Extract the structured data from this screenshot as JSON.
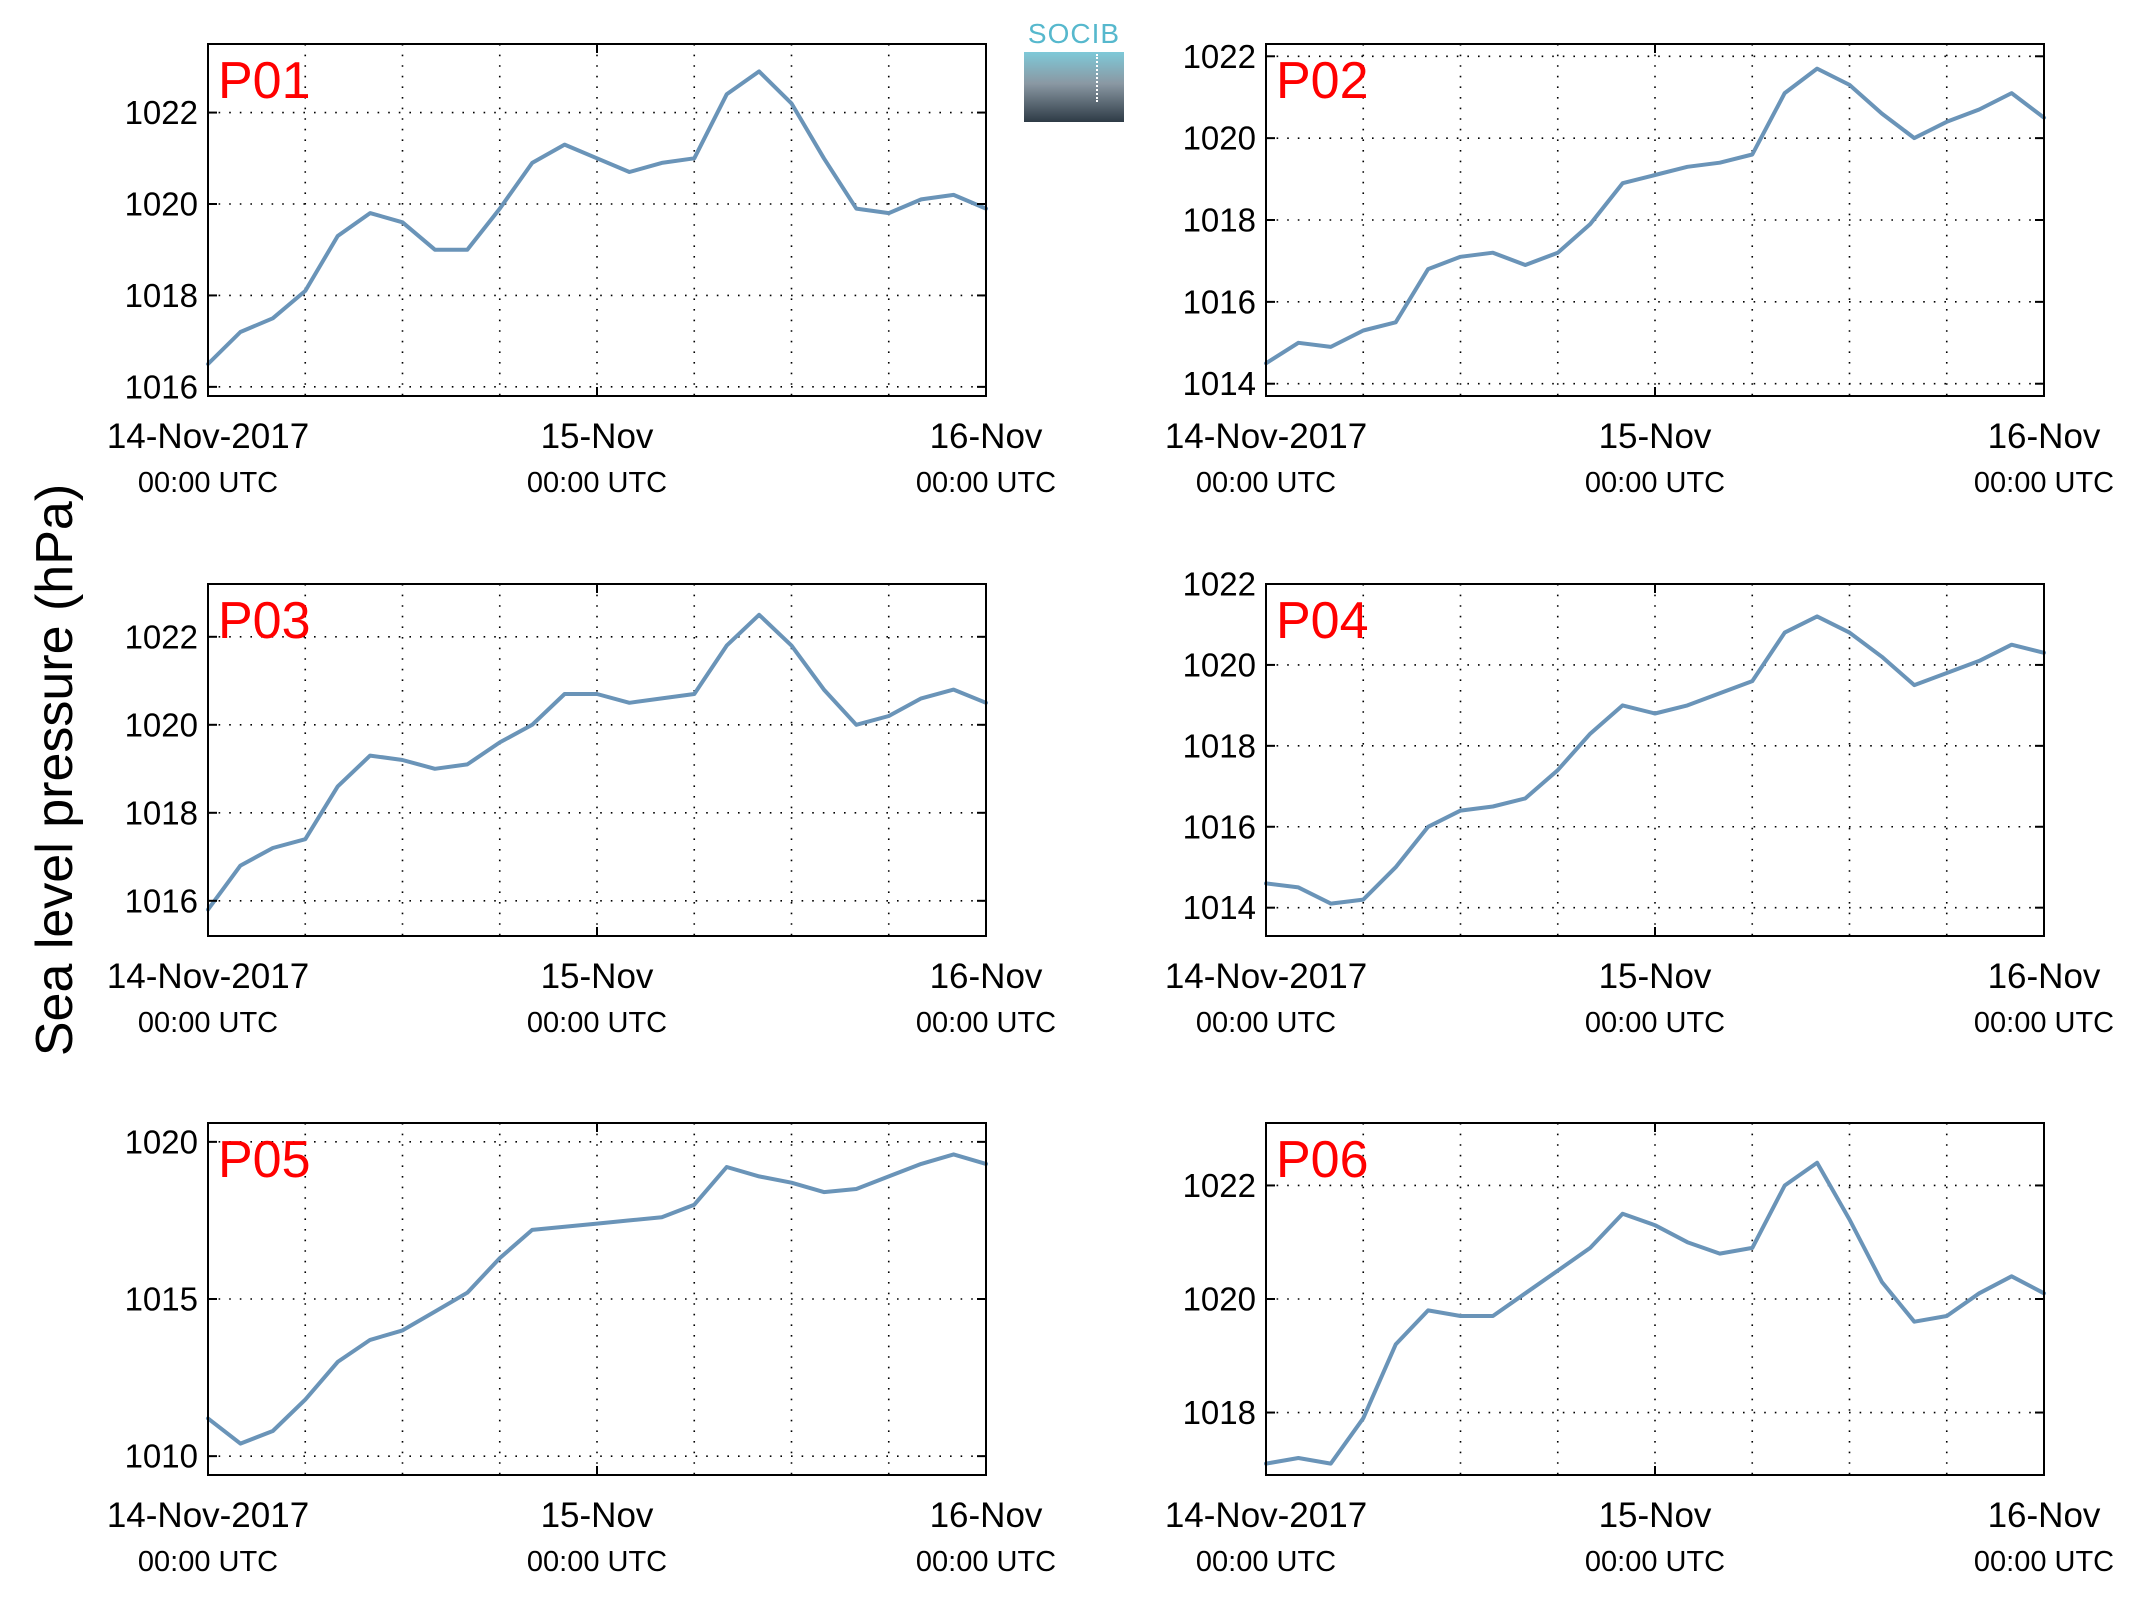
{
  "ylabel": "Sea level pressure (hPa)",
  "logo_text": "SOCIB",
  "colors": {
    "line": "#6a94b8",
    "panel_label": "#ff0000",
    "axis": "#000000",
    "grid": "#000000"
  },
  "chart_data": [
    {
      "type": "line",
      "panel": "P01",
      "xticks": [
        {
          "date": "14-Nov-2017",
          "time": "00:00 UTC"
        },
        {
          "date": "15-Nov",
          "time": "00:00 UTC"
        },
        {
          "date": "16-Nov",
          "time": "00:00 UTC"
        }
      ],
      "xlim": [
        "2017-11-14 00:00",
        "2017-11-16 00:00"
      ],
      "ylim": [
        1015.8,
        1023.5
      ],
      "yticks": [
        1016,
        1018,
        1020,
        1022
      ],
      "grid": true,
      "series": [
        {
          "x": [
            "2017-11-14 00:00",
            "2017-11-14 02:00",
            "2017-11-14 04:00",
            "2017-11-14 06:00",
            "2017-11-14 08:00",
            "2017-11-14 10:00",
            "2017-11-14 12:00",
            "2017-11-14 14:00",
            "2017-11-14 16:00",
            "2017-11-14 18:00",
            "2017-11-14 20:00",
            "2017-11-14 22:00",
            "2017-11-15 00:00",
            "2017-11-15 02:00",
            "2017-11-15 04:00",
            "2017-11-15 06:00",
            "2017-11-15 08:00",
            "2017-11-15 10:00",
            "2017-11-15 12:00",
            "2017-11-15 14:00",
            "2017-11-15 16:00",
            "2017-11-15 18:00",
            "2017-11-15 20:00",
            "2017-11-15 22:00",
            "2017-11-16 00:00"
          ],
          "y": [
            1016.5,
            1017.2,
            1017.5,
            1018.1,
            1019.3,
            1019.8,
            1019.6,
            1019.0,
            1019.0,
            1019.9,
            1020.9,
            1021.3,
            1021.0,
            1020.7,
            1020.9,
            1021.0,
            1022.4,
            1022.9,
            1022.2,
            1021.0,
            1019.9,
            1019.8,
            1020.1,
            1020.2,
            1019.9
          ]
        }
      ]
    },
    {
      "type": "line",
      "panel": "P02",
      "xticks": [
        {
          "date": "14-Nov-2017",
          "time": "00:00 UTC"
        },
        {
          "date": "15-Nov",
          "time": "00:00 UTC"
        },
        {
          "date": "16-Nov",
          "time": "00:00 UTC"
        }
      ],
      "xlim": [
        "2017-11-14 00:00",
        "2017-11-16 00:00"
      ],
      "ylim": [
        1013.7,
        1022.3
      ],
      "yticks": [
        1014,
        1016,
        1018,
        1020,
        1022
      ],
      "grid": true,
      "series": [
        {
          "x": [
            "2017-11-14 00:00",
            "2017-11-14 02:00",
            "2017-11-14 04:00",
            "2017-11-14 06:00",
            "2017-11-14 08:00",
            "2017-11-14 10:00",
            "2017-11-14 12:00",
            "2017-11-14 14:00",
            "2017-11-14 16:00",
            "2017-11-14 18:00",
            "2017-11-14 20:00",
            "2017-11-14 22:00",
            "2017-11-15 00:00",
            "2017-11-15 02:00",
            "2017-11-15 04:00",
            "2017-11-15 06:00",
            "2017-11-15 08:00",
            "2017-11-15 10:00",
            "2017-11-15 12:00",
            "2017-11-15 14:00",
            "2017-11-15 16:00",
            "2017-11-15 18:00",
            "2017-11-15 20:00",
            "2017-11-15 22:00",
            "2017-11-16 00:00"
          ],
          "y": [
            1014.5,
            1015.0,
            1014.9,
            1015.3,
            1015.5,
            1016.8,
            1017.1,
            1017.2,
            1016.9,
            1017.2,
            1017.9,
            1018.9,
            1019.1,
            1019.3,
            1019.4,
            1019.6,
            1021.1,
            1021.7,
            1021.3,
            1020.6,
            1020.0,
            1020.4,
            1020.7,
            1021.1,
            1020.5
          ]
        }
      ]
    },
    {
      "type": "line",
      "panel": "P03",
      "xticks": [
        {
          "date": "14-Nov-2017",
          "time": "00:00 UTC"
        },
        {
          "date": "15-Nov",
          "time": "00:00 UTC"
        },
        {
          "date": "16-Nov",
          "time": "00:00 UTC"
        }
      ],
      "xlim": [
        "2017-11-14 00:00",
        "2017-11-16 00:00"
      ],
      "ylim": [
        1015.2,
        1023.2
      ],
      "yticks": [
        1016,
        1018,
        1020,
        1022
      ],
      "grid": true,
      "series": [
        {
          "x": [
            "2017-11-14 00:00",
            "2017-11-14 02:00",
            "2017-11-14 04:00",
            "2017-11-14 06:00",
            "2017-11-14 08:00",
            "2017-11-14 10:00",
            "2017-11-14 12:00",
            "2017-11-14 14:00",
            "2017-11-14 16:00",
            "2017-11-14 18:00",
            "2017-11-14 20:00",
            "2017-11-14 22:00",
            "2017-11-15 00:00",
            "2017-11-15 02:00",
            "2017-11-15 04:00",
            "2017-11-15 06:00",
            "2017-11-15 08:00",
            "2017-11-15 10:00",
            "2017-11-15 12:00",
            "2017-11-15 14:00",
            "2017-11-15 16:00",
            "2017-11-15 18:00",
            "2017-11-15 20:00",
            "2017-11-15 22:00",
            "2017-11-16 00:00"
          ],
          "y": [
            1015.8,
            1016.8,
            1017.2,
            1017.4,
            1018.6,
            1019.3,
            1019.2,
            1019.0,
            1019.1,
            1019.6,
            1020.0,
            1020.7,
            1020.7,
            1020.5,
            1020.6,
            1020.7,
            1021.8,
            1022.5,
            1021.8,
            1020.8,
            1020.0,
            1020.2,
            1020.6,
            1020.8,
            1020.5
          ]
        }
      ]
    },
    {
      "type": "line",
      "panel": "P04",
      "xticks": [
        {
          "date": "14-Nov-2017",
          "time": "00:00 UTC"
        },
        {
          "date": "15-Nov",
          "time": "00:00 UTC"
        },
        {
          "date": "16-Nov",
          "time": "00:00 UTC"
        }
      ],
      "xlim": [
        "2017-11-14 00:00",
        "2017-11-16 00:00"
      ],
      "ylim": [
        1013.3,
        1022.0
      ],
      "yticks": [
        1014,
        1016,
        1018,
        1020,
        1022
      ],
      "grid": true,
      "series": [
        {
          "x": [
            "2017-11-14 00:00",
            "2017-11-14 02:00",
            "2017-11-14 04:00",
            "2017-11-14 06:00",
            "2017-11-14 08:00",
            "2017-11-14 10:00",
            "2017-11-14 12:00",
            "2017-11-14 14:00",
            "2017-11-14 16:00",
            "2017-11-14 18:00",
            "2017-11-14 20:00",
            "2017-11-14 22:00",
            "2017-11-15 00:00",
            "2017-11-15 02:00",
            "2017-11-15 04:00",
            "2017-11-15 06:00",
            "2017-11-15 08:00",
            "2017-11-15 10:00",
            "2017-11-15 12:00",
            "2017-11-15 14:00",
            "2017-11-15 16:00",
            "2017-11-15 18:00",
            "2017-11-15 20:00",
            "2017-11-15 22:00",
            "2017-11-16 00:00"
          ],
          "y": [
            1014.6,
            1014.5,
            1014.1,
            1014.2,
            1015.0,
            1016.0,
            1016.4,
            1016.5,
            1016.7,
            1017.4,
            1018.3,
            1019.0,
            1018.8,
            1019.0,
            1019.3,
            1019.6,
            1020.8,
            1021.2,
            1020.8,
            1020.2,
            1019.5,
            1019.8,
            1020.1,
            1020.5,
            1020.3
          ]
        }
      ]
    },
    {
      "type": "line",
      "panel": "P05",
      "xticks": [
        {
          "date": "14-Nov-2017",
          "time": "00:00 UTC"
        },
        {
          "date": "15-Nov",
          "time": "00:00 UTC"
        },
        {
          "date": "16-Nov",
          "time": "00:00 UTC"
        }
      ],
      "xlim": [
        "2017-11-14 00:00",
        "2017-11-16 00:00"
      ],
      "ylim": [
        1009.4,
        1020.6
      ],
      "yticks": [
        1010,
        1015,
        1020
      ],
      "grid": true,
      "series": [
        {
          "x": [
            "2017-11-14 00:00",
            "2017-11-14 02:00",
            "2017-11-14 04:00",
            "2017-11-14 06:00",
            "2017-11-14 08:00",
            "2017-11-14 10:00",
            "2017-11-14 12:00",
            "2017-11-14 14:00",
            "2017-11-14 16:00",
            "2017-11-14 18:00",
            "2017-11-14 20:00",
            "2017-11-14 22:00",
            "2017-11-15 00:00",
            "2017-11-15 02:00",
            "2017-11-15 04:00",
            "2017-11-15 06:00",
            "2017-11-15 08:00",
            "2017-11-15 10:00",
            "2017-11-15 12:00",
            "2017-11-15 14:00",
            "2017-11-15 16:00",
            "2017-11-15 18:00",
            "2017-11-15 20:00",
            "2017-11-15 22:00",
            "2017-11-16 00:00"
          ],
          "y": [
            1011.2,
            1010.4,
            1010.8,
            1011.8,
            1013.0,
            1013.7,
            1014.0,
            1014.6,
            1015.2,
            1016.3,
            1017.2,
            1017.3,
            1017.4,
            1017.5,
            1017.6,
            1018.0,
            1019.2,
            1018.9,
            1018.7,
            1018.4,
            1018.5,
            1018.9,
            1019.3,
            1019.6,
            1019.3
          ]
        }
      ]
    },
    {
      "type": "line",
      "panel": "P06",
      "xticks": [
        {
          "date": "14-Nov-2017",
          "time": "00:00 UTC"
        },
        {
          "date": "15-Nov",
          "time": "00:00 UTC"
        },
        {
          "date": "16-Nov",
          "time": "00:00 UTC"
        }
      ],
      "xlim": [
        "2017-11-14 00:00",
        "2017-11-16 00:00"
      ],
      "ylim": [
        1016.9,
        1023.1
      ],
      "yticks": [
        1018,
        1020,
        1022
      ],
      "grid": true,
      "series": [
        {
          "x": [
            "2017-11-14 00:00",
            "2017-11-14 02:00",
            "2017-11-14 04:00",
            "2017-11-14 06:00",
            "2017-11-14 08:00",
            "2017-11-14 10:00",
            "2017-11-14 12:00",
            "2017-11-14 14:00",
            "2017-11-14 16:00",
            "2017-11-14 18:00",
            "2017-11-14 20:00",
            "2017-11-14 22:00",
            "2017-11-15 00:00",
            "2017-11-15 02:00",
            "2017-11-15 04:00",
            "2017-11-15 06:00",
            "2017-11-15 08:00",
            "2017-11-15 10:00",
            "2017-11-15 12:00",
            "2017-11-15 14:00",
            "2017-11-15 16:00",
            "2017-11-15 18:00",
            "2017-11-15 20:00",
            "2017-11-15 22:00",
            "2017-11-16 00:00"
          ],
          "y": [
            1017.1,
            1017.2,
            1017.1,
            1017.9,
            1019.2,
            1019.8,
            1019.7,
            1019.7,
            1020.1,
            1020.5,
            1020.9,
            1021.5,
            1021.3,
            1021.0,
            1020.8,
            1020.9,
            1022.0,
            1022.4,
            1021.4,
            1020.3,
            1019.6,
            1019.7,
            1020.1,
            1020.4,
            1020.1
          ]
        }
      ]
    }
  ]
}
